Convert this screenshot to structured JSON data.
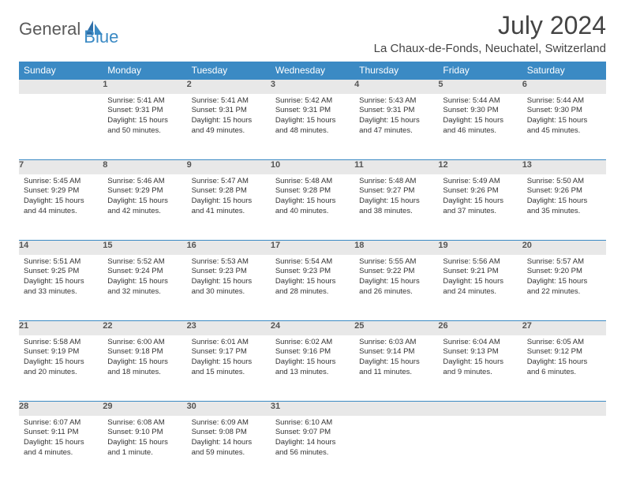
{
  "brand": {
    "part1": "General",
    "part2": "Blue"
  },
  "title": "July 2024",
  "location": "La Chaux-de-Fonds, Neuchatel, Switzerland",
  "colors": {
    "header_bg": "#3b8ac4",
    "header_text": "#ffffff",
    "daynum_bg": "#e8e8e8",
    "text": "#333333",
    "page_bg": "#ffffff"
  },
  "weekdays": [
    "Sunday",
    "Monday",
    "Tuesday",
    "Wednesday",
    "Thursday",
    "Friday",
    "Saturday"
  ],
  "font": {
    "family": "Arial",
    "cell_fontsize_pt": 7,
    "header_fontsize_pt": 9,
    "title_fontsize_pt": 24
  },
  "weeks": [
    [
      null,
      {
        "n": 1,
        "sr": "5:41 AM",
        "ss": "9:31 PM",
        "dl": "15 hours and 50 minutes."
      },
      {
        "n": 2,
        "sr": "5:41 AM",
        "ss": "9:31 PM",
        "dl": "15 hours and 49 minutes."
      },
      {
        "n": 3,
        "sr": "5:42 AM",
        "ss": "9:31 PM",
        "dl": "15 hours and 48 minutes."
      },
      {
        "n": 4,
        "sr": "5:43 AM",
        "ss": "9:31 PM",
        "dl": "15 hours and 47 minutes."
      },
      {
        "n": 5,
        "sr": "5:44 AM",
        "ss": "9:30 PM",
        "dl": "15 hours and 46 minutes."
      },
      {
        "n": 6,
        "sr": "5:44 AM",
        "ss": "9:30 PM",
        "dl": "15 hours and 45 minutes."
      }
    ],
    [
      {
        "n": 7,
        "sr": "5:45 AM",
        "ss": "9:29 PM",
        "dl": "15 hours and 44 minutes."
      },
      {
        "n": 8,
        "sr": "5:46 AM",
        "ss": "9:29 PM",
        "dl": "15 hours and 42 minutes."
      },
      {
        "n": 9,
        "sr": "5:47 AM",
        "ss": "9:28 PM",
        "dl": "15 hours and 41 minutes."
      },
      {
        "n": 10,
        "sr": "5:48 AM",
        "ss": "9:28 PM",
        "dl": "15 hours and 40 minutes."
      },
      {
        "n": 11,
        "sr": "5:48 AM",
        "ss": "9:27 PM",
        "dl": "15 hours and 38 minutes."
      },
      {
        "n": 12,
        "sr": "5:49 AM",
        "ss": "9:26 PM",
        "dl": "15 hours and 37 minutes."
      },
      {
        "n": 13,
        "sr": "5:50 AM",
        "ss": "9:26 PM",
        "dl": "15 hours and 35 minutes."
      }
    ],
    [
      {
        "n": 14,
        "sr": "5:51 AM",
        "ss": "9:25 PM",
        "dl": "15 hours and 33 minutes."
      },
      {
        "n": 15,
        "sr": "5:52 AM",
        "ss": "9:24 PM",
        "dl": "15 hours and 32 minutes."
      },
      {
        "n": 16,
        "sr": "5:53 AM",
        "ss": "9:23 PM",
        "dl": "15 hours and 30 minutes."
      },
      {
        "n": 17,
        "sr": "5:54 AM",
        "ss": "9:23 PM",
        "dl": "15 hours and 28 minutes."
      },
      {
        "n": 18,
        "sr": "5:55 AM",
        "ss": "9:22 PM",
        "dl": "15 hours and 26 minutes."
      },
      {
        "n": 19,
        "sr": "5:56 AM",
        "ss": "9:21 PM",
        "dl": "15 hours and 24 minutes."
      },
      {
        "n": 20,
        "sr": "5:57 AM",
        "ss": "9:20 PM",
        "dl": "15 hours and 22 minutes."
      }
    ],
    [
      {
        "n": 21,
        "sr": "5:58 AM",
        "ss": "9:19 PM",
        "dl": "15 hours and 20 minutes."
      },
      {
        "n": 22,
        "sr": "6:00 AM",
        "ss": "9:18 PM",
        "dl": "15 hours and 18 minutes."
      },
      {
        "n": 23,
        "sr": "6:01 AM",
        "ss": "9:17 PM",
        "dl": "15 hours and 15 minutes."
      },
      {
        "n": 24,
        "sr": "6:02 AM",
        "ss": "9:16 PM",
        "dl": "15 hours and 13 minutes."
      },
      {
        "n": 25,
        "sr": "6:03 AM",
        "ss": "9:14 PM",
        "dl": "15 hours and 11 minutes."
      },
      {
        "n": 26,
        "sr": "6:04 AM",
        "ss": "9:13 PM",
        "dl": "15 hours and 9 minutes."
      },
      {
        "n": 27,
        "sr": "6:05 AM",
        "ss": "9:12 PM",
        "dl": "15 hours and 6 minutes."
      }
    ],
    [
      {
        "n": 28,
        "sr": "6:07 AM",
        "ss": "9:11 PM",
        "dl": "15 hours and 4 minutes."
      },
      {
        "n": 29,
        "sr": "6:08 AM",
        "ss": "9:10 PM",
        "dl": "15 hours and 1 minute."
      },
      {
        "n": 30,
        "sr": "6:09 AM",
        "ss": "9:08 PM",
        "dl": "14 hours and 59 minutes."
      },
      {
        "n": 31,
        "sr": "6:10 AM",
        "ss": "9:07 PM",
        "dl": "14 hours and 56 minutes."
      },
      null,
      null,
      null
    ]
  ],
  "labels": {
    "sunrise": "Sunrise:",
    "sunset": "Sunset:",
    "daylight": "Daylight:"
  }
}
